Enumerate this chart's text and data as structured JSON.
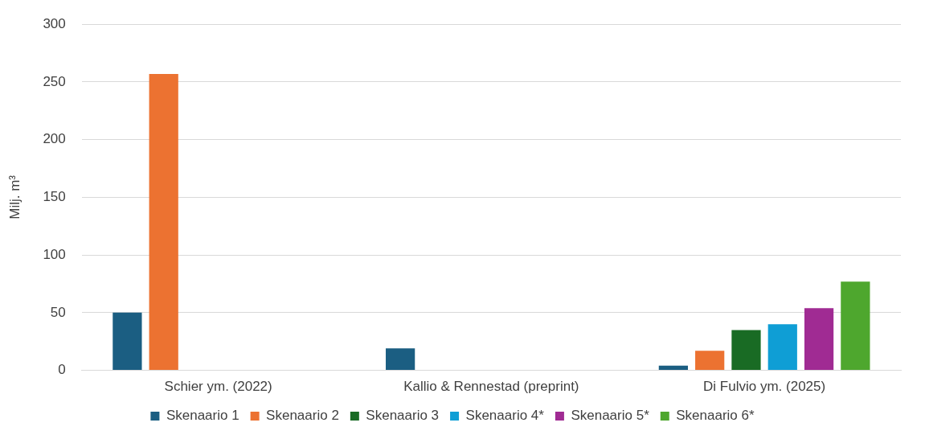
{
  "chart_data": {
    "type": "bar",
    "ylabel": "Milj. m³",
    "categories": [
      "Schier ym. (2022)",
      "Kallio & Rennestad (preprint)",
      "Di Fulvio ym. (2025)"
    ],
    "series": [
      {
        "name": "Skenaario 1",
        "color": "#1b5e82",
        "values": [
          50,
          19,
          4
        ]
      },
      {
        "name": "Skenaario 2",
        "color": "#ec7231",
        "values": [
          257,
          null,
          17
        ]
      },
      {
        "name": "Skenaario 3",
        "color": "#196b24",
        "values": [
          null,
          null,
          35
        ]
      },
      {
        "name": "Skenaario 4*",
        "color": "#0f9ed5",
        "values": [
          null,
          null,
          40
        ]
      },
      {
        "name": "Skenaario 5*",
        "color": "#a02b93",
        "values": [
          null,
          null,
          54
        ]
      },
      {
        "name": "Skenaario 6*",
        "color": "#4ea72e",
        "values": [
          null,
          null,
          77
        ]
      }
    ],
    "ylim": [
      0,
      300
    ],
    "yticks": [
      0,
      50,
      100,
      150,
      200,
      250,
      300
    ],
    "grid": "y",
    "legend": "bottom"
  }
}
